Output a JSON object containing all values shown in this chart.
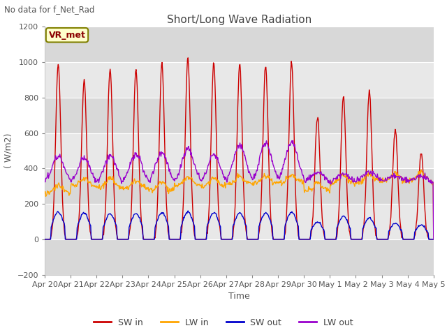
{
  "title": "Short/Long Wave Radiation",
  "ylabel": "( W/m2)",
  "xlabel": "Time",
  "top_left_text": "No data for f_Net_Rad",
  "legend_label": "VR_met",
  "ylim": [
    -200,
    1200
  ],
  "yticks": [
    -200,
    0,
    200,
    400,
    600,
    800,
    1000,
    1200
  ],
  "x_tick_labels": [
    "Apr 20",
    "Apr 21",
    "Apr 22",
    "Apr 23",
    "Apr 24",
    "Apr 25",
    "Apr 26",
    "Apr 27",
    "Apr 28",
    "Apr 29",
    "Apr 30",
    "May 1",
    "May 2",
    "May 3",
    "May 4",
    "May 5"
  ],
  "fig_bg_color": "#ffffff",
  "plot_bg_color": "#e8e8e8",
  "grid_color": "#ffffff",
  "band_color": "#d8d8d8",
  "sw_in_color": "#cc0000",
  "lw_in_color": "#ffa500",
  "sw_out_color": "#0000cc",
  "lw_out_color": "#9900cc",
  "line_width": 1.0,
  "n_days": 15,
  "sw_in_peaks": [
    990,
    900,
    960,
    960,
    990,
    1020,
    990,
    990,
    990,
    1000,
    700,
    800,
    840,
    620,
    500
  ],
  "lw_in_base": [
    260,
    300,
    295,
    290,
    275,
    305,
    300,
    310,
    315,
    320,
    275,
    315,
    325,
    328,
    330
  ],
  "sw_out_peaks": [
    155,
    150,
    145,
    145,
    150,
    155,
    150,
    150,
    150,
    155,
    100,
    130,
    120,
    90,
    80
  ],
  "lw_out_night": [
    315,
    310,
    310,
    310,
    310,
    315,
    310,
    315,
    315,
    320,
    320,
    320,
    325,
    325,
    325
  ],
  "lw_out_peaks": [
    470,
    460,
    470,
    480,
    490,
    510,
    480,
    530,
    540,
    550,
    380,
    370,
    380,
    360,
    355
  ]
}
